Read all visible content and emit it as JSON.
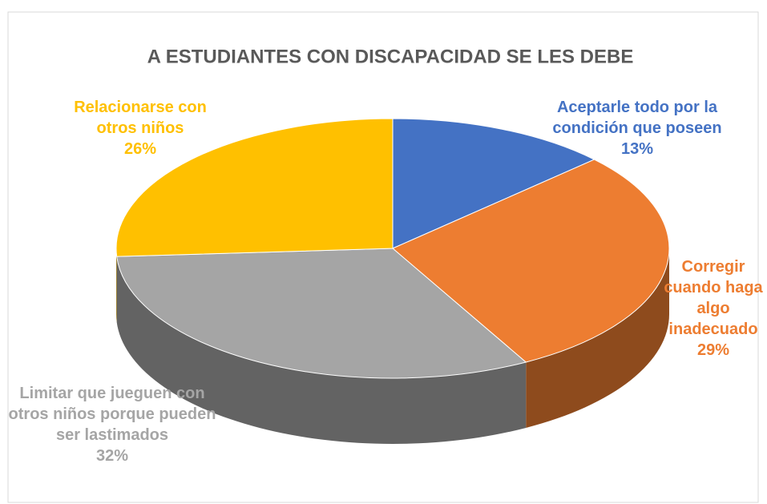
{
  "chart_data": {
    "type": "pie",
    "title": "A ESTUDIANTES CON DISCAPACIDAD SE LES DEBE",
    "categories": [
      "Aceptarle todo por la condición que poseen",
      "Corregir cuando haga algo inadecuado",
      "Limitar que jueguen con otros niños porque pueden ser lastimados",
      "Relacionarse con otros niños"
    ],
    "values": [
      13,
      29,
      32,
      26
    ],
    "value_labels": [
      "13%",
      "29%",
      "32%",
      "26%"
    ],
    "colors": [
      "#4472c4",
      "#ed7d31",
      "#a5a5a5",
      "#ffc000"
    ]
  }
}
